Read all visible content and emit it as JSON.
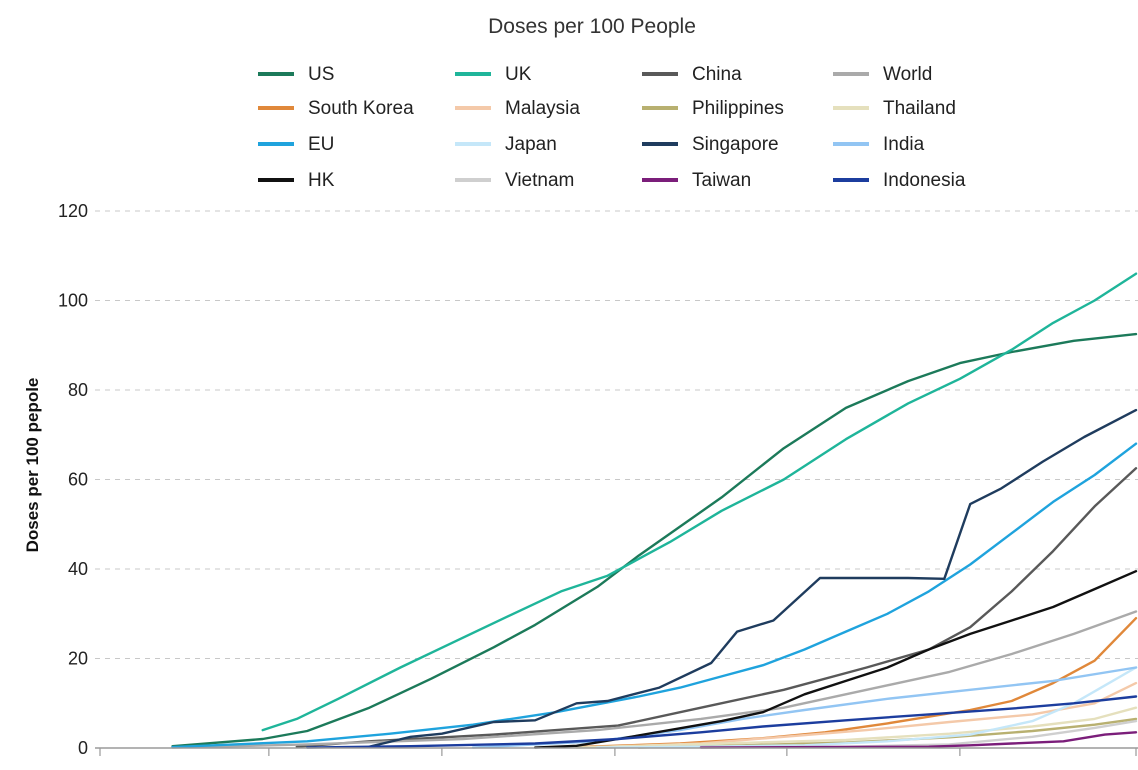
{
  "chart_data": {
    "type": "line",
    "title": "Doses per 100 People",
    "xlabel": "",
    "ylabel": "Doses per 100 pepole",
    "ylim": [
      0,
      120
    ],
    "yticks": [
      0,
      20,
      40,
      60,
      80,
      100,
      120
    ],
    "xlim": [
      0,
      1
    ],
    "grid": true,
    "legend_position": "top",
    "series": [
      {
        "name": "US",
        "color": "#1c7a5a",
        "points": [
          [
            0.07,
            0.4
          ],
          [
            0.157,
            2.0
          ],
          [
            0.2,
            3.8
          ],
          [
            0.26,
            9
          ],
          [
            0.32,
            15.5
          ],
          [
            0.38,
            22.5
          ],
          [
            0.42,
            27.5
          ],
          [
            0.48,
            36
          ],
          [
            0.52,
            43
          ],
          [
            0.6,
            56
          ],
          [
            0.66,
            67
          ],
          [
            0.72,
            76
          ],
          [
            0.78,
            82
          ],
          [
            0.83,
            86
          ],
          [
            0.88,
            88.5
          ],
          [
            0.94,
            91
          ],
          [
            1.0,
            92.5
          ]
        ]
      },
      {
        "name": "UK",
        "color": "#1fb59a",
        "points": [
          [
            0.157,
            4.0
          ],
          [
            0.19,
            6.5
          ],
          [
            0.23,
            11
          ],
          [
            0.29,
            18
          ],
          [
            0.34,
            23.5
          ],
          [
            0.39,
            29
          ],
          [
            0.445,
            35
          ],
          [
            0.49,
            38.5
          ],
          [
            0.55,
            46
          ],
          [
            0.6,
            53
          ],
          [
            0.66,
            60
          ],
          [
            0.72,
            69
          ],
          [
            0.78,
            77
          ],
          [
            0.83,
            82.5
          ],
          [
            0.88,
            89
          ],
          [
            0.92,
            95
          ],
          [
            0.96,
            100
          ],
          [
            1.0,
            106
          ]
        ]
      },
      {
        "name": "China",
        "color": "#595959",
        "points": [
          [
            0.19,
            0.3
          ],
          [
            0.26,
            1.5
          ],
          [
            0.38,
            3
          ],
          [
            0.5,
            5
          ],
          [
            0.58,
            9
          ],
          [
            0.66,
            13
          ],
          [
            0.74,
            18
          ],
          [
            0.8,
            22
          ],
          [
            0.84,
            27
          ],
          [
            0.88,
            35
          ],
          [
            0.92,
            44
          ],
          [
            0.96,
            54
          ],
          [
            1.0,
            62.5
          ]
        ]
      },
      {
        "name": "World",
        "color": "#aaaaaa",
        "points": [
          [
            0.07,
            0.1
          ],
          [
            0.2,
            0.8
          ],
          [
            0.35,
            2
          ],
          [
            0.48,
            4
          ],
          [
            0.58,
            6.5
          ],
          [
            0.66,
            9
          ],
          [
            0.74,
            13
          ],
          [
            0.82,
            17
          ],
          [
            0.88,
            21
          ],
          [
            0.94,
            25.5
          ],
          [
            1.0,
            30.5
          ]
        ]
      },
      {
        "name": "South Korea",
        "color": "#e0883a",
        "points": [
          [
            0.46,
            0.2
          ],
          [
            0.56,
            1.0
          ],
          [
            0.64,
            2.2
          ],
          [
            0.7,
            3.5
          ],
          [
            0.76,
            5.5
          ],
          [
            0.84,
            8.5
          ],
          [
            0.88,
            10.5
          ],
          [
            0.92,
            14.5
          ],
          [
            0.96,
            19.5
          ],
          [
            1.0,
            29
          ]
        ]
      },
      {
        "name": "Malaysia",
        "color": "#f4c9a9",
        "points": [
          [
            0.48,
            0.2
          ],
          [
            0.58,
            1.0
          ],
          [
            0.66,
            2.5
          ],
          [
            0.74,
            4.0
          ],
          [
            0.82,
            5.8
          ],
          [
            0.9,
            7.5
          ],
          [
            0.96,
            10
          ],
          [
            1.0,
            14.5
          ]
        ]
      },
      {
        "name": "Philippines",
        "color": "#b8b070",
        "points": [
          [
            0.52,
            0.1
          ],
          [
            0.62,
            0.6
          ],
          [
            0.72,
            1.2
          ],
          [
            0.82,
            2.4
          ],
          [
            0.9,
            3.8
          ],
          [
            0.96,
            5.2
          ],
          [
            1.0,
            6.5
          ]
        ]
      },
      {
        "name": "Thailand",
        "color": "#e5e0bd",
        "points": [
          [
            0.46,
            0.1
          ],
          [
            0.6,
            1.0
          ],
          [
            0.72,
            1.8
          ],
          [
            0.82,
            3.2
          ],
          [
            0.9,
            4.8
          ],
          [
            0.96,
            6.5
          ],
          [
            1.0,
            9
          ]
        ]
      },
      {
        "name": "EU",
        "color": "#1fa3dd",
        "points": [
          [
            0.07,
            0.2
          ],
          [
            0.2,
            1.5
          ],
          [
            0.28,
            3.2
          ],
          [
            0.36,
            5.2
          ],
          [
            0.44,
            8
          ],
          [
            0.52,
            11.5
          ],
          [
            0.56,
            13.5
          ],
          [
            0.6,
            16
          ],
          [
            0.64,
            18.5
          ],
          [
            0.68,
            22
          ],
          [
            0.72,
            26
          ],
          [
            0.76,
            30
          ],
          [
            0.8,
            35
          ],
          [
            0.84,
            41
          ],
          [
            0.88,
            48
          ],
          [
            0.92,
            55
          ],
          [
            0.96,
            61
          ],
          [
            1.0,
            68
          ]
        ]
      },
      {
        "name": "Japan",
        "color": "#c5e7f9",
        "points": [
          [
            0.48,
            0.1
          ],
          [
            0.58,
            0.3
          ],
          [
            0.68,
            0.6
          ],
          [
            0.76,
            1.5
          ],
          [
            0.84,
            3
          ],
          [
            0.9,
            6
          ],
          [
            0.94,
            10
          ],
          [
            0.97,
            14
          ],
          [
            1.0,
            18
          ]
        ]
      },
      {
        "name": "Singapore",
        "color": "#1f3c5e",
        "points": [
          [
            0.26,
            0.3
          ],
          [
            0.3,
            2.5
          ],
          [
            0.33,
            3.2
          ],
          [
            0.38,
            5.8
          ],
          [
            0.42,
            6.2
          ],
          [
            0.46,
            10
          ],
          [
            0.49,
            10.5
          ],
          [
            0.54,
            13.5
          ],
          [
            0.59,
            19
          ],
          [
            0.615,
            26
          ],
          [
            0.65,
            28.5
          ],
          [
            0.695,
            38
          ],
          [
            0.74,
            38
          ],
          [
            0.78,
            38
          ],
          [
            0.815,
            37.8
          ],
          [
            0.84,
            54.5
          ],
          [
            0.87,
            58
          ],
          [
            0.91,
            64
          ],
          [
            0.95,
            69.5
          ],
          [
            1.0,
            75.5
          ]
        ]
      },
      {
        "name": "India",
        "color": "#92c5f3",
        "points": [
          [
            0.36,
            0.1
          ],
          [
            0.48,
            1.5
          ],
          [
            0.56,
            4
          ],
          [
            0.62,
            6.5
          ],
          [
            0.68,
            8.5
          ],
          [
            0.76,
            11
          ],
          [
            0.84,
            13
          ],
          [
            0.92,
            15
          ],
          [
            1.0,
            18
          ]
        ]
      },
      {
        "name": "HK",
        "color": "#111111",
        "points": [
          [
            0.42,
            0.1
          ],
          [
            0.46,
            0.5
          ],
          [
            0.5,
            2
          ],
          [
            0.55,
            4
          ],
          [
            0.6,
            6
          ],
          [
            0.64,
            8
          ],
          [
            0.68,
            12
          ],
          [
            0.72,
            15
          ],
          [
            0.76,
            18
          ],
          [
            0.8,
            22
          ],
          [
            0.84,
            25.5
          ],
          [
            0.88,
            28.5
          ],
          [
            0.92,
            31.5
          ],
          [
            0.96,
            35.5
          ],
          [
            1.0,
            39.5
          ]
        ]
      },
      {
        "name": "Vietnam",
        "color": "#cfcfcf",
        "points": [
          [
            0.58,
            0.1
          ],
          [
            0.72,
            0.3
          ],
          [
            0.82,
            0.8
          ],
          [
            0.9,
            2.5
          ],
          [
            0.96,
            4.5
          ],
          [
            1.0,
            6
          ]
        ]
      },
      {
        "name": "Taiwan",
        "color": "#7b1e7a",
        "points": [
          [
            0.58,
            0.1
          ],
          [
            0.7,
            0.2
          ],
          [
            0.8,
            0.3
          ],
          [
            0.84,
            0.6
          ],
          [
            0.88,
            1.0
          ],
          [
            0.93,
            1.5
          ],
          [
            0.97,
            3
          ],
          [
            1.0,
            3.5
          ]
        ]
      },
      {
        "name": "Indonesia",
        "color": "#1c3d9e",
        "points": [
          [
            0.2,
            0.1
          ],
          [
            0.3,
            0.4
          ],
          [
            0.42,
            1.0
          ],
          [
            0.5,
            2.0
          ],
          [
            0.58,
            3.5
          ],
          [
            0.64,
            4.8
          ],
          [
            0.72,
            6.2
          ],
          [
            0.8,
            7.5
          ],
          [
            0.88,
            8.8
          ],
          [
            0.94,
            10
          ],
          [
            1.0,
            11.5
          ]
        ]
      }
    ],
    "legend_order": [
      "US",
      "UK",
      "China",
      "World",
      "South Korea",
      "Malaysia",
      "Philippines",
      "Thailand",
      "EU",
      "Japan",
      "Singapore",
      "India",
      "HK",
      "Vietnam",
      "Taiwan",
      "Indonesia"
    ]
  }
}
